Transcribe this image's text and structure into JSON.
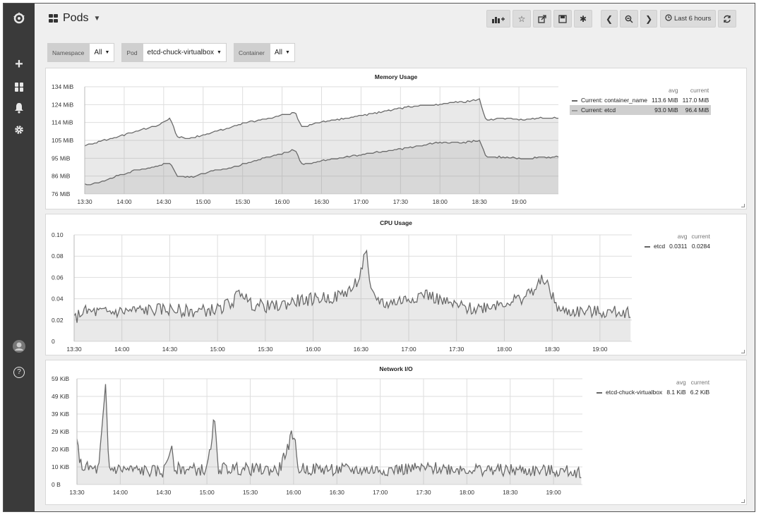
{
  "sidebar": {
    "icons": [
      "grafana-logo-icon",
      "plus-icon",
      "dashboards-icon",
      "bell-icon",
      "gear-icon",
      "user-avatar-icon",
      "help-icon"
    ],
    "help_glyph": "?",
    "plus_glyph": "+"
  },
  "header": {
    "title": "Pods",
    "time_range": "Last 6 hours",
    "buttons": [
      "add-panel",
      "star",
      "share",
      "save",
      "settings",
      "time-back",
      "zoom-out",
      "time-forward",
      "time-picker",
      "refresh"
    ]
  },
  "variables": [
    {
      "label": "Namespace",
      "value": "All"
    },
    {
      "label": "Pod",
      "value": "etcd-chuck-virtualbox"
    },
    {
      "label": "Container",
      "value": "All"
    }
  ],
  "panels": {
    "memory": {
      "title": "Memory Usage",
      "legend_headers": [
        "avg",
        "current"
      ],
      "legend": [
        {
          "name": "Current: container_name",
          "avg": "113.6 MiB",
          "current": "117.0 MiB",
          "selected": false
        },
        {
          "name": "Current: etcd",
          "avg": "93.0 MiB",
          "current": "96.4 MiB",
          "selected": true
        }
      ]
    },
    "cpu": {
      "title": "CPU Usage",
      "legend_headers": [
        "avg",
        "current"
      ],
      "legend": [
        {
          "name": "etcd",
          "avg": "0.0311",
          "current": "0.0284",
          "selected": false
        }
      ]
    },
    "network": {
      "title": "Network I/O",
      "legend_headers": [
        "avg",
        "current"
      ],
      "legend": [
        {
          "name": "etcd-chuck-virtualbox",
          "avg": "8.1 KiB",
          "current": "6.2 KiB",
          "selected": false
        }
      ]
    }
  },
  "chart_data": [
    {
      "type": "area",
      "title": "Memory Usage",
      "x_ticks": [
        "13:30",
        "14:00",
        "14:30",
        "15:00",
        "15:30",
        "16:00",
        "16:30",
        "17:00",
        "17:30",
        "18:00",
        "18:30",
        "19:00"
      ],
      "y_ticks": [
        "134 MiB",
        "124 MiB",
        "114 MiB",
        "105 MiB",
        "95 MiB",
        "86 MiB",
        "76 MiB"
      ],
      "ylim": [
        76,
        134
      ],
      "x_range_min": [
        0,
        360
      ],
      "series": [
        {
          "name": "Current: container_name",
          "points": [
            [
              0,
              102
            ],
            [
              10,
              104
            ],
            [
              25,
              107
            ],
            [
              40,
              110
            ],
            [
              55,
              113
            ],
            [
              65,
              117
            ],
            [
              70,
              107
            ],
            [
              80,
              106
            ],
            [
              95,
              109
            ],
            [
              110,
              112
            ],
            [
              125,
              115
            ],
            [
              140,
              117
            ],
            [
              160,
              120
            ],
            [
              165,
              112
            ],
            [
              180,
              115
            ],
            [
              200,
              117
            ],
            [
              215,
              119
            ],
            [
              230,
              121
            ],
            [
              245,
              123
            ],
            [
              260,
              124
            ],
            [
              275,
              125
            ],
            [
              290,
              126
            ],
            [
              300,
              127
            ],
            [
              305,
              116
            ],
            [
              320,
              117
            ],
            [
              335,
              116
            ],
            [
              345,
              117
            ]
          ]
        },
        {
          "name": "Current: etcd",
          "points": [
            [
              0,
              81
            ],
            [
              10,
              82
            ],
            [
              25,
              86
            ],
            [
              40,
              89
            ],
            [
              55,
              91
            ],
            [
              65,
              93
            ],
            [
              70,
              86
            ],
            [
              80,
              85
            ],
            [
              95,
              88
            ],
            [
              110,
              90
            ],
            [
              125,
              93
            ],
            [
              140,
              96
            ],
            [
              160,
              100
            ],
            [
              165,
              92
            ],
            [
              180,
              94
            ],
            [
              200,
              96
            ],
            [
              215,
              98
            ],
            [
              230,
              99
            ],
            [
              245,
              101
            ],
            [
              260,
              103
            ],
            [
              275,
              104
            ],
            [
              290,
              104
            ],
            [
              300,
              105
            ],
            [
              305,
              96
            ],
            [
              320,
              96
            ],
            [
              335,
              95
            ],
            [
              345,
              96
            ]
          ]
        }
      ]
    },
    {
      "type": "area",
      "title": "CPU Usage",
      "x_ticks": [
        "13:30",
        "14:00",
        "14:30",
        "15:00",
        "15:30",
        "16:00",
        "16:30",
        "17:00",
        "17:30",
        "18:00",
        "18:30",
        "19:00"
      ],
      "y_ticks": [
        "0.10",
        "0.08",
        "0.06",
        "0.04",
        "0.02",
        "0"
      ],
      "ylim": [
        0,
        0.1
      ],
      "x_range_min": [
        0,
        350
      ],
      "series": [
        {
          "name": "etcd",
          "points": [
            [
              0,
              0.02
            ],
            [
              5,
              0.028
            ],
            [
              20,
              0.027
            ],
            [
              40,
              0.029
            ],
            [
              60,
              0.03
            ],
            [
              75,
              0.028
            ],
            [
              90,
              0.03
            ],
            [
              100,
              0.038
            ],
            [
              105,
              0.048
            ],
            [
              110,
              0.035
            ],
            [
              125,
              0.032
            ],
            [
              140,
              0.038
            ],
            [
              150,
              0.04
            ],
            [
              165,
              0.042
            ],
            [
              175,
              0.05
            ],
            [
              180,
              0.065
            ],
            [
              183,
              0.088
            ],
            [
              186,
              0.045
            ],
            [
              195,
              0.035
            ],
            [
              210,
              0.04
            ],
            [
              220,
              0.045
            ],
            [
              235,
              0.035
            ],
            [
              250,
              0.03
            ],
            [
              265,
              0.035
            ],
            [
              280,
              0.04
            ],
            [
              290,
              0.05
            ],
            [
              295,
              0.06
            ],
            [
              300,
              0.042
            ],
            [
              305,
              0.028
            ],
            [
              320,
              0.028
            ],
            [
              335,
              0.027
            ],
            [
              350,
              0.028
            ]
          ]
        }
      ]
    },
    {
      "type": "area",
      "title": "Network I/O",
      "x_ticks": [
        "13:30",
        "14:00",
        "14:30",
        "15:00",
        "15:30",
        "16:00",
        "16:30",
        "17:00",
        "17:30",
        "18:00",
        "18:30",
        "19:00"
      ],
      "y_ticks": [
        "59 KiB",
        "49 KiB",
        "39 KiB",
        "29 KiB",
        "20 KiB",
        "10 KiB",
        "0 B"
      ],
      "ylim": [
        0,
        59
      ],
      "x_range_min": [
        0,
        350
      ],
      "series": [
        {
          "name": "etcd-chuck-virtualbox",
          "points": [
            [
              0,
              23
            ],
            [
              3,
              10
            ],
            [
              15,
              8
            ],
            [
              20,
              55
            ],
            [
              22,
              9
            ],
            [
              40,
              8
            ],
            [
              60,
              7
            ],
            [
              65,
              21
            ],
            [
              68,
              9
            ],
            [
              90,
              8
            ],
            [
              95,
              36
            ],
            [
              98,
              9
            ],
            [
              140,
              8
            ],
            [
              150,
              30
            ],
            [
              153,
              9
            ],
            [
              200,
              8
            ],
            [
              250,
              9
            ],
            [
              300,
              8
            ],
            [
              350,
              7
            ]
          ]
        }
      ]
    }
  ]
}
